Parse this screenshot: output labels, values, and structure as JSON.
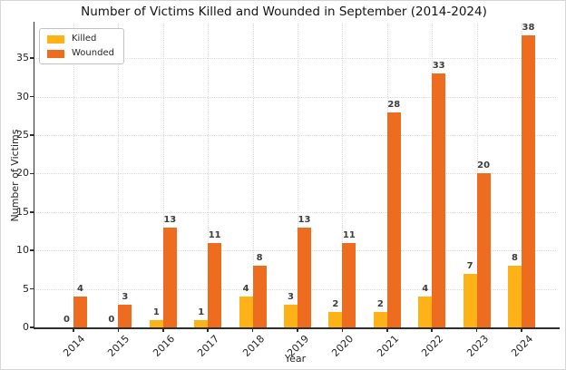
{
  "chart_data": {
    "type": "bar",
    "title": "Number of Victims Killed and Wounded in September (2014-2024)",
    "xlabel": "Year",
    "ylabel": "Number of Victims",
    "categories": [
      "2014",
      "2015",
      "2016",
      "2017",
      "2018",
      "2019",
      "2020",
      "2021",
      "2022",
      "2023",
      "2024"
    ],
    "series": [
      {
        "name": "Killed",
        "color": "#FDB218",
        "values": [
          0,
          0,
          1,
          1,
          4,
          3,
          2,
          2,
          4,
          7,
          8
        ]
      },
      {
        "name": "Wounded",
        "color": "#ED6C1F",
        "values": [
          4,
          3,
          13,
          11,
          8,
          13,
          11,
          28,
          33,
          20,
          38
        ]
      }
    ],
    "yticks": [
      0,
      5,
      10,
      15,
      20,
      25,
      30,
      35
    ],
    "ylim": [
      0,
      39.5
    ],
    "grid": true,
    "legend_position": "upper left",
    "bar_value_labels": true
  }
}
